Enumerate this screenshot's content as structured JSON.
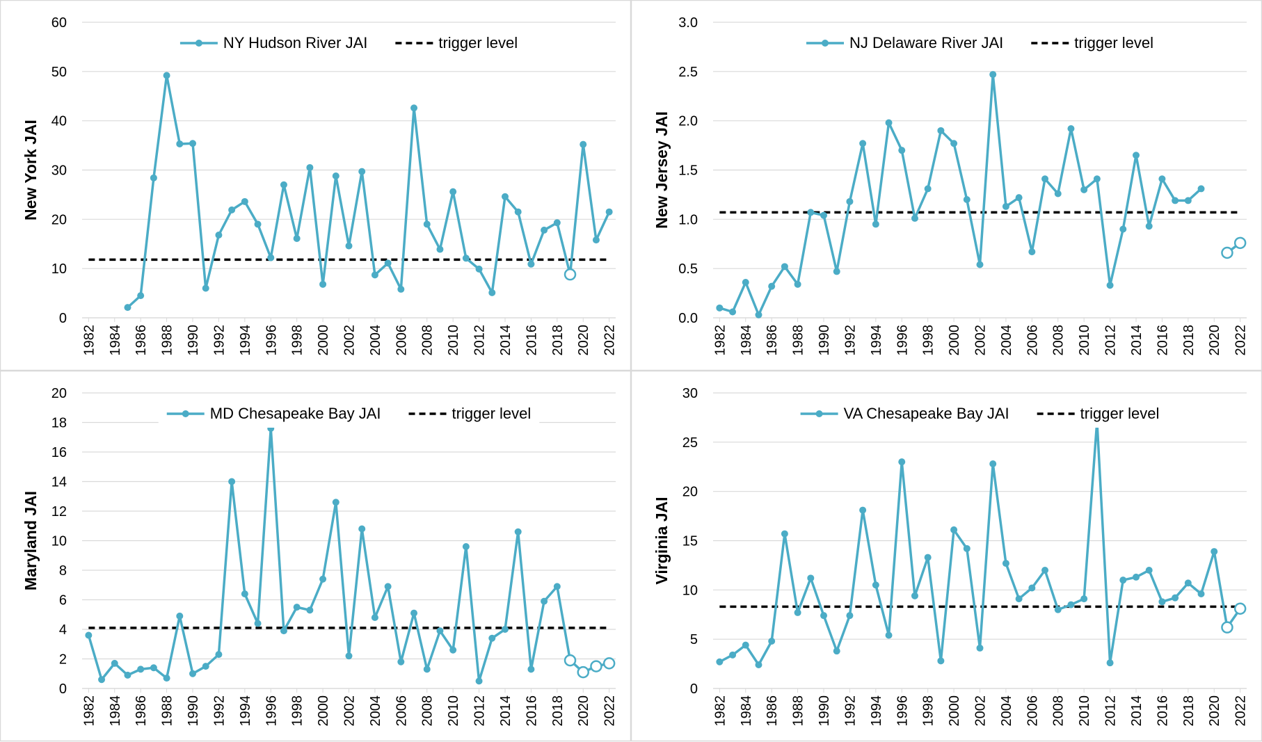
{
  "chart_data": [
    {
      "type": "line",
      "y_label": "New York JAI",
      "x": [
        1982,
        1983,
        1984,
        1985,
        1986,
        1987,
        1988,
        1989,
        1990,
        1991,
        1992,
        1993,
        1994,
        1995,
        1996,
        1997,
        1998,
        1999,
        2000,
        2001,
        2002,
        2003,
        2004,
        2005,
        2006,
        2007,
        2008,
        2009,
        2010,
        2011,
        2012,
        2013,
        2014,
        2015,
        2016,
        2017,
        2018,
        2019,
        2020,
        2021,
        2022
      ],
      "xlim": [
        1981.5,
        2022.5
      ],
      "xticks": [
        1982,
        1984,
        1986,
        1988,
        1990,
        1992,
        1994,
        1996,
        1998,
        2000,
        2002,
        2004,
        2006,
        2008,
        2010,
        2012,
        2014,
        2016,
        2018,
        2020,
        2022
      ],
      "ylim": [
        0,
        60
      ],
      "yticks": [
        0,
        10,
        20,
        30,
        40,
        50,
        60
      ],
      "grid": true,
      "series": [
        {
          "name": "NY Hudson River JAI",
          "color": "#4bacc6",
          "open_markers_at": [
            2019
          ],
          "values": [
            null,
            null,
            null,
            2.1,
            4.5,
            28.4,
            49.2,
            35.3,
            35.4,
            6.0,
            16.8,
            21.9,
            23.6,
            19.0,
            12.2,
            27.0,
            16.1,
            30.5,
            6.8,
            28.8,
            14.6,
            29.7,
            8.7,
            11.1,
            5.8,
            42.6,
            19.0,
            13.9,
            25.6,
            12.1,
            9.9,
            5.1,
            24.6,
            21.5,
            10.9,
            17.8,
            19.3,
            8.8,
            35.2,
            15.8,
            21.5
          ]
        }
      ],
      "trigger": {
        "name": "trigger level",
        "value": 11.8,
        "color": "#000000"
      }
    },
    {
      "type": "line",
      "y_label": "New Jersey JAI",
      "x": [
        1982,
        1983,
        1984,
        1985,
        1986,
        1987,
        1988,
        1989,
        1990,
        1991,
        1992,
        1993,
        1994,
        1995,
        1996,
        1997,
        1998,
        1999,
        2000,
        2001,
        2002,
        2003,
        2004,
        2005,
        2006,
        2007,
        2008,
        2009,
        2010,
        2011,
        2012,
        2013,
        2014,
        2015,
        2016,
        2017,
        2018,
        2019,
        2020,
        2021,
        2022
      ],
      "xlim": [
        1981.5,
        2022.5
      ],
      "xticks": [
        1982,
        1984,
        1986,
        1988,
        1990,
        1992,
        1994,
        1996,
        1998,
        2000,
        2002,
        2004,
        2006,
        2008,
        2010,
        2012,
        2014,
        2016,
        2018,
        2020,
        2022
      ],
      "ylim": [
        0,
        3
      ],
      "yticks": [
        {
          "value": 0,
          "label": "0.0"
        },
        {
          "value": 0.5,
          "label": "0.5"
        },
        {
          "value": 1,
          "label": "1.0"
        },
        {
          "value": 1.5,
          "label": "1.5"
        },
        {
          "value": 2,
          "label": "2.0"
        },
        {
          "value": 2.5,
          "label": "2.5"
        },
        {
          "value": 3,
          "label": "3.0"
        }
      ],
      "grid": true,
      "series": [
        {
          "name": "NJ Delaware River JAI",
          "color": "#4bacc6",
          "open_markers_at": [
            2021,
            2022
          ],
          "values": [
            0.1,
            0.06,
            0.36,
            0.03,
            0.32,
            0.52,
            0.34,
            1.07,
            1.04,
            0.47,
            1.18,
            1.77,
            0.95,
            1.98,
            1.7,
            1.01,
            1.31,
            1.9,
            1.77,
            1.2,
            0.54,
            2.47,
            1.13,
            1.22,
            0.67,
            1.41,
            1.26,
            1.92,
            1.3,
            1.41,
            0.33,
            0.9,
            1.65,
            0.93,
            1.41,
            1.19,
            1.19,
            1.31,
            null,
            0.66,
            0.76
          ]
        }
      ],
      "trigger": {
        "name": "trigger level",
        "value": 1.07,
        "color": "#000000"
      }
    },
    {
      "type": "line",
      "y_label": "Maryland JAI",
      "x": [
        1982,
        1983,
        1984,
        1985,
        1986,
        1987,
        1988,
        1989,
        1990,
        1991,
        1992,
        1993,
        1994,
        1995,
        1996,
        1997,
        1998,
        1999,
        2000,
        2001,
        2002,
        2003,
        2004,
        2005,
        2006,
        2007,
        2008,
        2009,
        2010,
        2011,
        2012,
        2013,
        2014,
        2015,
        2016,
        2017,
        2018,
        2019,
        2020,
        2021,
        2022
      ],
      "xlim": [
        1981.5,
        2022.5
      ],
      "xticks": [
        1982,
        1984,
        1986,
        1988,
        1990,
        1992,
        1994,
        1996,
        1998,
        2000,
        2002,
        2004,
        2006,
        2008,
        2010,
        2012,
        2014,
        2016,
        2018,
        2020,
        2022
      ],
      "ylim": [
        0,
        20
      ],
      "yticks": [
        0,
        2,
        4,
        6,
        8,
        10,
        12,
        14,
        16,
        18,
        20
      ],
      "grid": true,
      "series": [
        {
          "name": "MD Chesapeake Bay JAI",
          "color": "#4bacc6",
          "open_markers_at": [
            2019,
            2020,
            2021,
            2022
          ],
          "values": [
            3.6,
            0.6,
            1.7,
            0.9,
            1.3,
            1.4,
            0.7,
            4.9,
            1.0,
            1.5,
            2.3,
            14.0,
            6.4,
            4.4,
            17.6,
            3.9,
            5.5,
            5.3,
            7.4,
            12.6,
            2.2,
            10.8,
            4.8,
            6.9,
            1.8,
            5.1,
            1.3,
            3.9,
            2.6,
            9.6,
            0.5,
            3.4,
            4.0,
            10.6,
            1.3,
            5.9,
            6.9,
            1.9,
            1.1,
            1.5,
            1.7
          ]
        }
      ],
      "trigger": {
        "name": "trigger level",
        "value": 4.1,
        "color": "#000000"
      }
    },
    {
      "type": "line",
      "y_label": "Virginia JAI",
      "x": [
        1982,
        1983,
        1984,
        1985,
        1986,
        1987,
        1988,
        1989,
        1990,
        1991,
        1992,
        1993,
        1994,
        1995,
        1996,
        1997,
        1998,
        1999,
        2000,
        2001,
        2002,
        2003,
        2004,
        2005,
        2006,
        2007,
        2008,
        2009,
        2010,
        2011,
        2012,
        2013,
        2014,
        2015,
        2016,
        2017,
        2018,
        2019,
        2020,
        2021,
        2022
      ],
      "xlim": [
        1981.5,
        2022.5
      ],
      "xticks": [
        1982,
        1984,
        1986,
        1988,
        1990,
        1992,
        1994,
        1996,
        1998,
        2000,
        2002,
        2004,
        2006,
        2008,
        2010,
        2012,
        2014,
        2016,
        2018,
        2020,
        2022
      ],
      "ylim": [
        0,
        30
      ],
      "yticks": [
        0,
        5,
        10,
        15,
        20,
        25,
        30
      ],
      "grid": true,
      "series": [
        {
          "name": "VA Chesapeake Bay JAI",
          "color": "#4bacc6",
          "open_markers_at": [
            2021,
            2022
          ],
          "values": [
            2.7,
            3.4,
            4.4,
            2.4,
            4.8,
            15.7,
            7.7,
            11.2,
            7.4,
            3.8,
            7.4,
            18.1,
            10.5,
            5.4,
            23.0,
            9.4,
            13.3,
            2.8,
            16.1,
            14.2,
            4.1,
            22.8,
            12.7,
            9.1,
            10.2,
            12.0,
            8.0,
            8.5,
            9.1,
            27.1,
            2.6,
            11.0,
            11.3,
            12.0,
            8.8,
            9.2,
            10.7,
            9.6,
            13.9,
            6.2,
            8.1
          ]
        }
      ],
      "trigger": {
        "name": "trigger level",
        "value": 8.3,
        "color": "#000000"
      }
    }
  ]
}
